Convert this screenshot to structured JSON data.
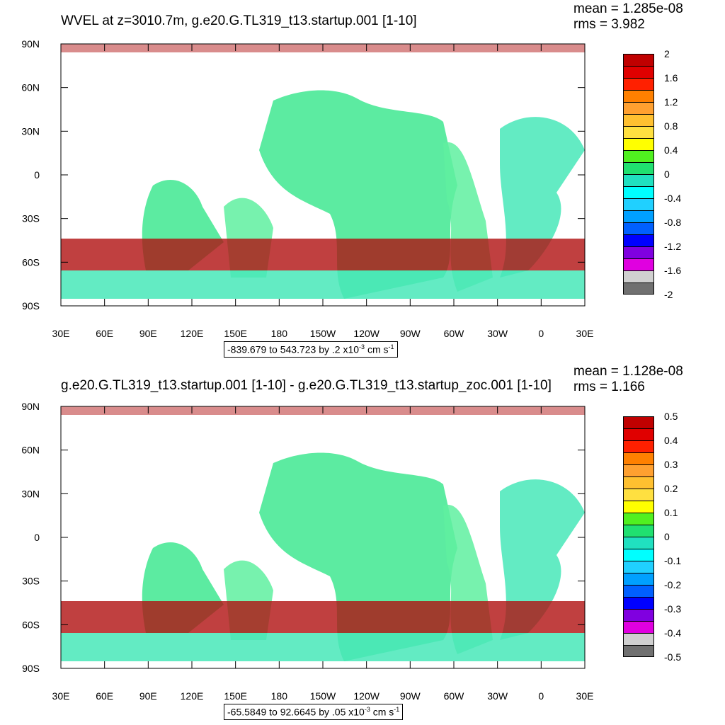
{
  "chart_data": [
    {
      "type": "heatmap",
      "title": "WVEL at z=3010.7m, g.e20.G.TL319_t13.startup.001 [1-10]",
      "stats": {
        "mean": "mean = 1.285e-08",
        "rms": "rms = 3.982"
      },
      "lat_ticks": [
        "90N",
        "60N",
        "30N",
        "0",
        "30S",
        "60S",
        "90S"
      ],
      "lon_ticks": [
        "30E",
        "60E",
        "90E",
        "120E",
        "150E",
        "180",
        "150W",
        "120W",
        "90W",
        "60W",
        "30W",
        "0",
        "30E"
      ],
      "range_note": {
        "text": "-839.679 to 543.723 by .2 x10",
        "exp": "-3",
        "units": " cm s",
        "units_exp": "-1"
      },
      "colorbar": {
        "colors": [
          "#c00000",
          "#e00000",
          "#ff2000",
          "#ff8000",
          "#ffa030",
          "#ffc030",
          "#ffe040",
          "#ffff00",
          "#50f020",
          "#20e070",
          "#20e0c0",
          "#00ffff",
          "#20d0ff",
          "#00a0ff",
          "#0060ff",
          "#0000ff",
          "#8000e0",
          "#e000e0",
          "#d0d0d0",
          "#707070"
        ],
        "labels": [
          "2",
          "1.6",
          "1.2",
          "0.8",
          "0.4",
          "0",
          "-0.4",
          "-0.8",
          "-1.2",
          "-1.6",
          "-2"
        ]
      }
    },
    {
      "type": "heatmap",
      "title": "g.e20.G.TL319_t13.startup.001 [1-10] - g.e20.G.TL319_t13.startup_zoc.001 [1-10]",
      "stats": {
        "mean": "mean = 1.128e-08",
        "rms": "rms = 1.166"
      },
      "lat_ticks": [
        "90N",
        "60N",
        "30N",
        "0",
        "30S",
        "60S",
        "90S"
      ],
      "lon_ticks": [
        "30E",
        "60E",
        "90E",
        "120E",
        "150E",
        "180",
        "150W",
        "120W",
        "90W",
        "60W",
        "30W",
        "0",
        "30E"
      ],
      "range_note": {
        "text": "-65.5849 to 92.6645 by .05 x10",
        "exp": "-3",
        "units": " cm s",
        "units_exp": "-1"
      },
      "colorbar": {
        "colors": [
          "#c00000",
          "#e00000",
          "#ff2000",
          "#ff8000",
          "#ffa030",
          "#ffc030",
          "#ffe040",
          "#ffff00",
          "#50f020",
          "#20e070",
          "#20e0c0",
          "#00ffff",
          "#20d0ff",
          "#00a0ff",
          "#0060ff",
          "#0000ff",
          "#8000e0",
          "#e000e0",
          "#d0d0d0",
          "#707070"
        ],
        "labels": [
          "0.5",
          "0.4",
          "0.3",
          "0.2",
          "0.1",
          "0",
          "-0.1",
          "-0.2",
          "-0.3",
          "-0.4",
          "-0.5"
        ]
      }
    }
  ]
}
